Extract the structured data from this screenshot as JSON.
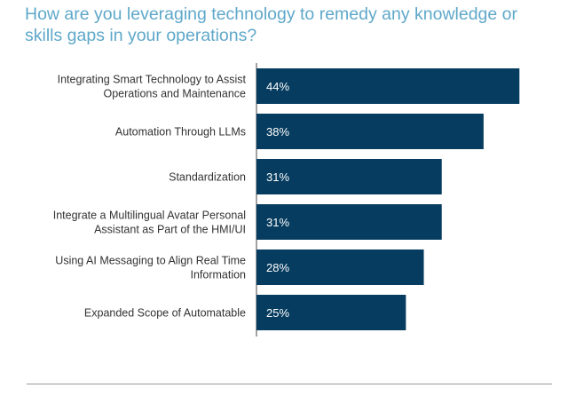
{
  "chart_data": {
    "type": "bar",
    "orientation": "horizontal",
    "title": "How are you leveraging technology to remedy any knowledge or skills gaps in your operations?",
    "categories": [
      [
        "Integrating Smart Technology to Assist",
        "Operations and Maintenance"
      ],
      [
        "Automation Through LLMs"
      ],
      [
        "Standardization"
      ],
      [
        "Integrate a Multilingual Avatar Personal",
        "Assistant as Part of the HMI/UI"
      ],
      [
        "Using AI Messaging to Align Real Time",
        "Information"
      ],
      [
        "Expanded Scope of Automatable"
      ]
    ],
    "values": [
      44,
      38,
      31,
      31,
      28,
      25
    ],
    "value_labels": [
      "44%",
      "38%",
      "31%",
      "31%",
      "28%",
      "25%"
    ],
    "xlim": [
      0,
      45
    ],
    "grid": false,
    "legend": "none",
    "colors": {
      "bar": "#063c5f",
      "bar_label": "#ffffff",
      "category_label": "#333333",
      "title": "#5fa8c9",
      "axis": "#444444"
    }
  }
}
